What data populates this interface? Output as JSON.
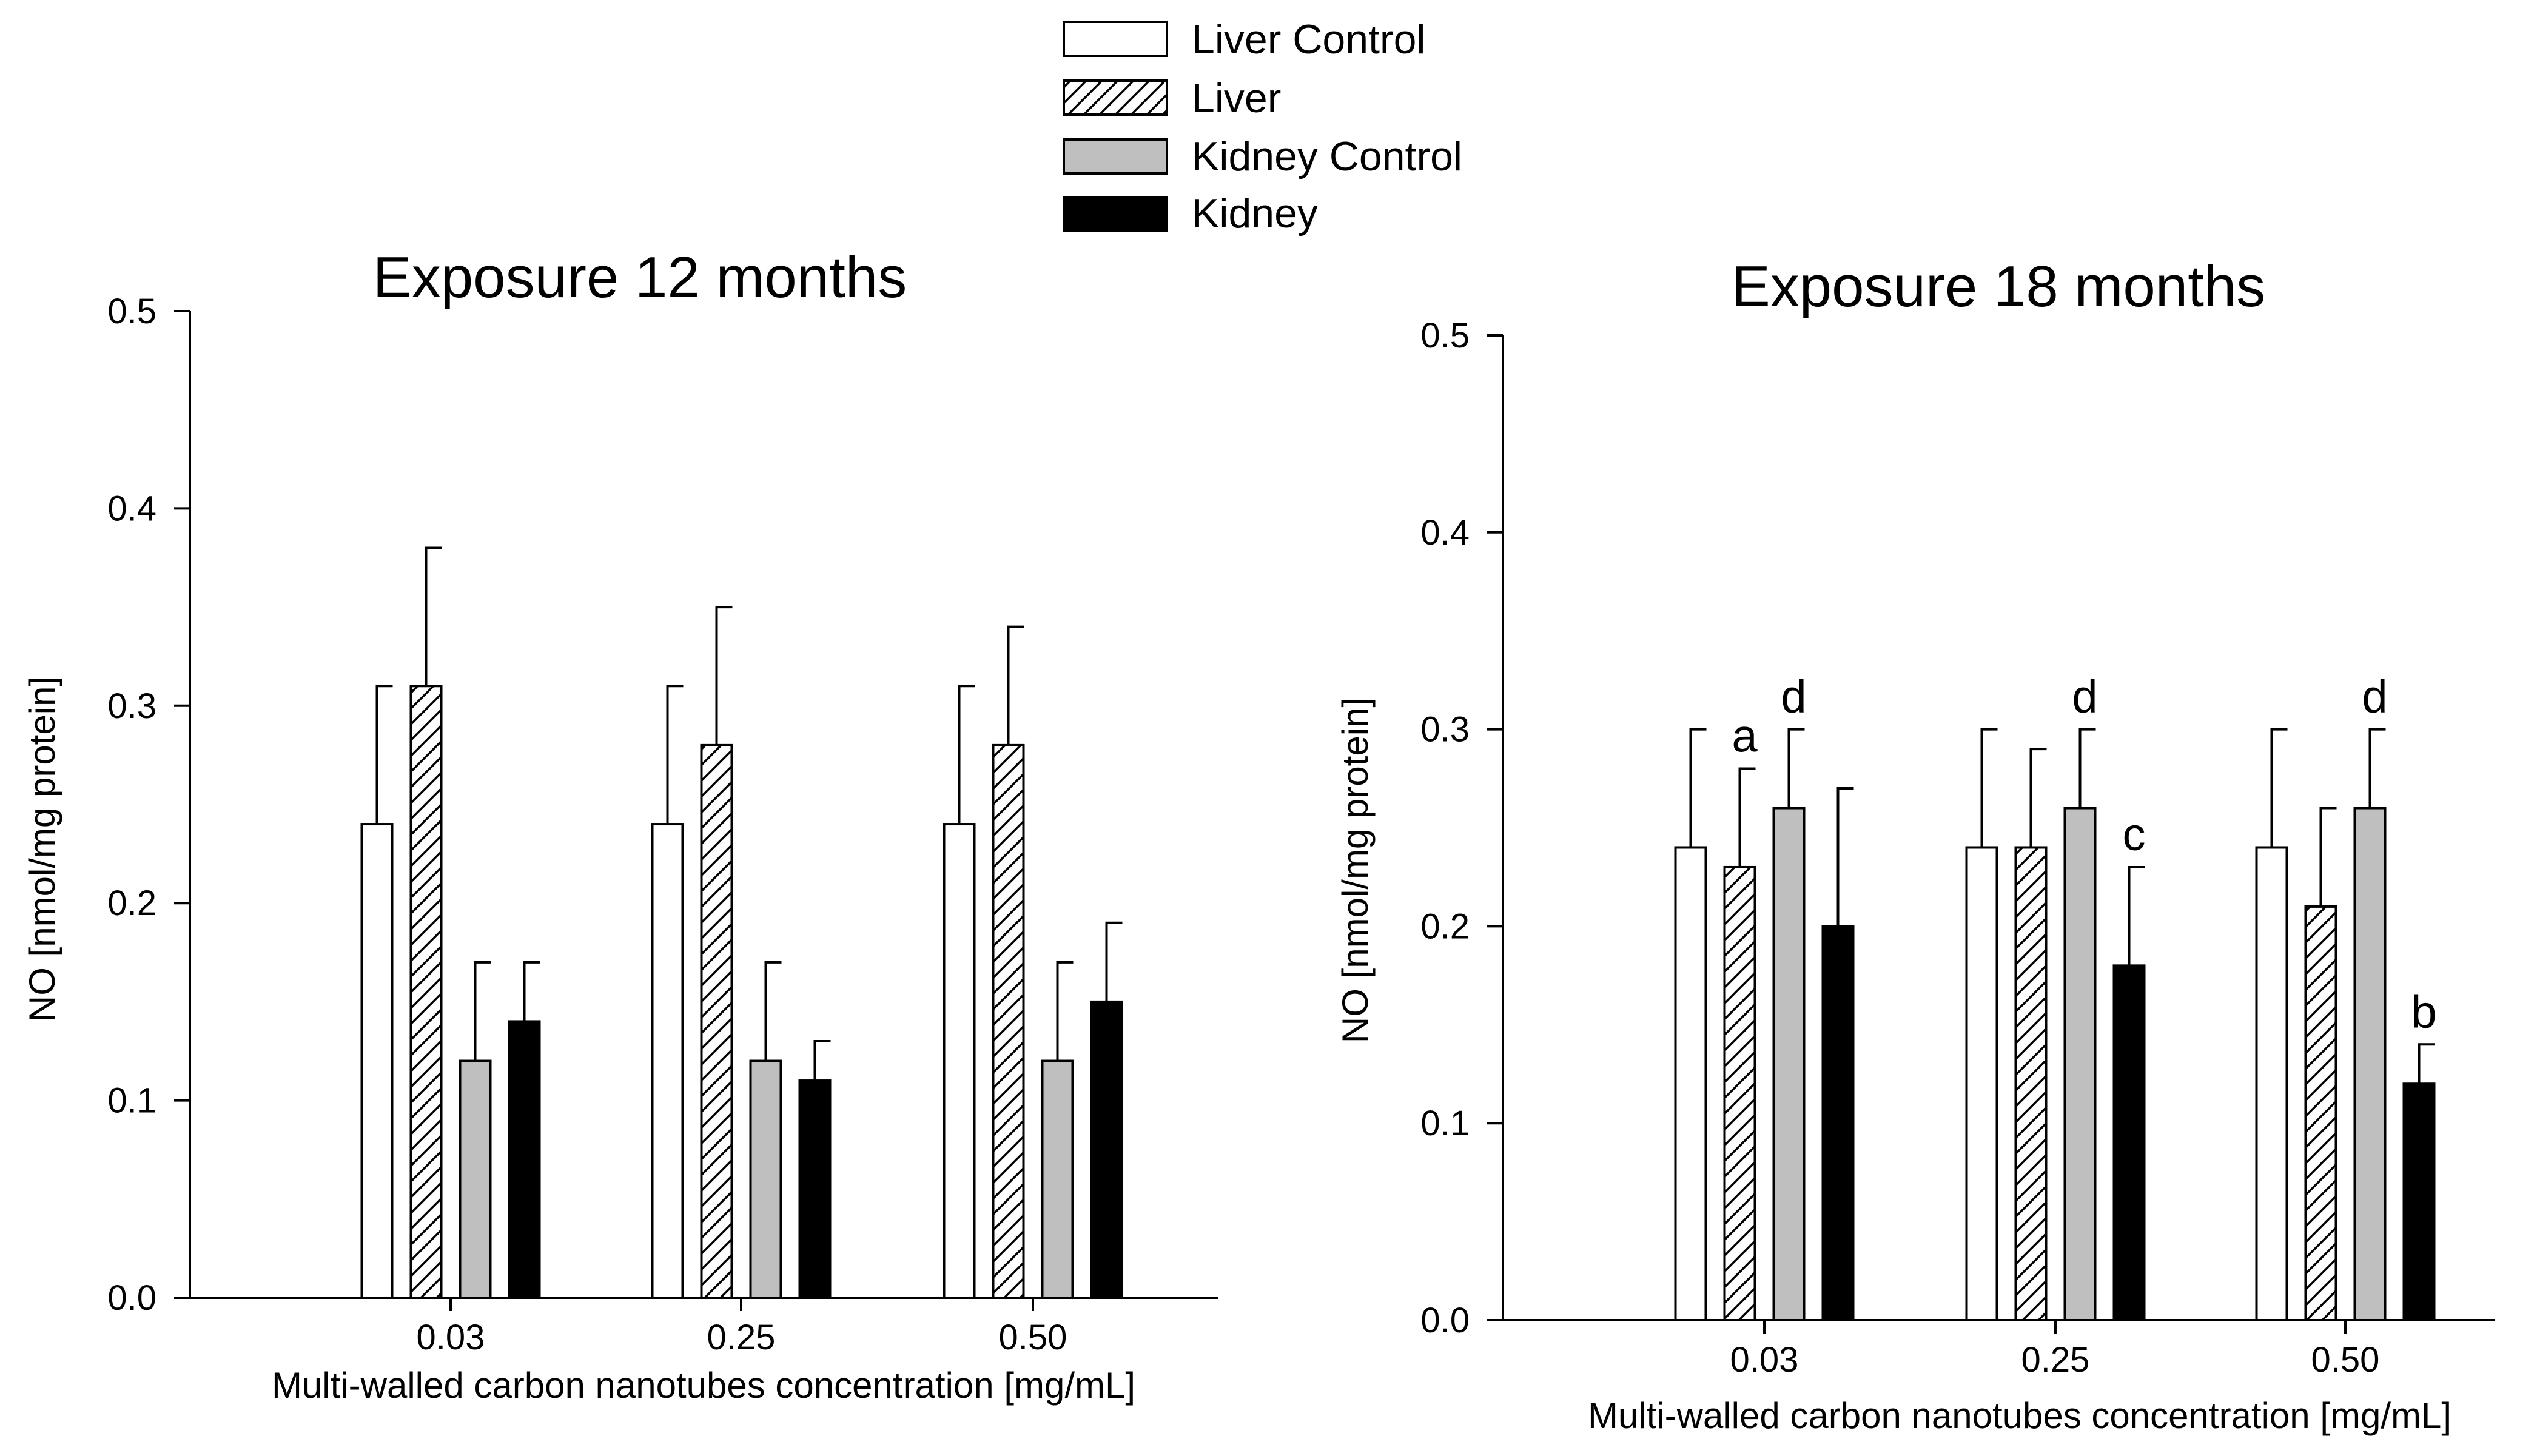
{
  "legend": [
    {
      "key": "liver_control",
      "label": "Liver Control",
      "fill": "#ffffff",
      "pattern": "none"
    },
    {
      "key": "liver",
      "label": "Liver",
      "fill": "#ffffff",
      "pattern": "hatch"
    },
    {
      "key": "kidney_control",
      "label": "Kidney Control",
      "fill": "#bfbfbf",
      "pattern": "none"
    },
    {
      "key": "kidney",
      "label": "Kidney",
      "fill": "#000000",
      "pattern": "none"
    }
  ],
  "chart_data": [
    {
      "type": "bar",
      "title": "Exposure 12 months",
      "xlabel": "Multi-walled carbon nanotubes concentration [mg/mL]",
      "ylabel": "NO [nmol/mg protein]",
      "ylim": [
        0,
        0.5
      ],
      "yticks": [
        "0.0",
        "0.1",
        "0.2",
        "0.3",
        "0.4",
        "0.5"
      ],
      "categories": [
        "0.03",
        "0.25",
        "0.50"
      ],
      "series": [
        {
          "name": "Liver Control",
          "values": [
            0.24,
            0.24,
            0.24
          ],
          "errors": [
            0.07,
            0.07,
            0.07
          ]
        },
        {
          "name": "Liver",
          "values": [
            0.31,
            0.28,
            0.28
          ],
          "errors": [
            0.07,
            0.07,
            0.06
          ]
        },
        {
          "name": "Kidney Control",
          "values": [
            0.12,
            0.12,
            0.12
          ],
          "errors": [
            0.05,
            0.05,
            0.05
          ]
        },
        {
          "name": "Kidney",
          "values": [
            0.14,
            0.11,
            0.15
          ],
          "errors": [
            0.03,
            0.02,
            0.04
          ]
        }
      ],
      "annotations": []
    },
    {
      "type": "bar",
      "title": "Exposure 18 months",
      "xlabel": "Multi-walled carbon nanotubes concentration [mg/mL]",
      "ylabel": "NO [nmol/mg protein]",
      "ylim": [
        0,
        0.5
      ],
      "yticks": [
        "0.0",
        "0.1",
        "0.2",
        "0.3",
        "0.4",
        "0.5"
      ],
      "categories": [
        "0.03",
        "0.25",
        "0.50"
      ],
      "series": [
        {
          "name": "Liver Control",
          "values": [
            0.24,
            0.24,
            0.24
          ],
          "errors": [
            0.06,
            0.06,
            0.06
          ]
        },
        {
          "name": "Liver",
          "values": [
            0.23,
            0.24,
            0.21
          ],
          "errors": [
            0.05,
            0.05,
            0.05
          ]
        },
        {
          "name": "Kidney Control",
          "values": [
            0.26,
            0.26,
            0.26
          ],
          "errors": [
            0.04,
            0.04,
            0.04
          ]
        },
        {
          "name": "Kidney",
          "values": [
            0.2,
            0.18,
            0.12
          ],
          "errors": [
            0.07,
            0.05,
            0.02
          ]
        }
      ],
      "annotations": [
        {
          "category": 0,
          "series": 1,
          "text": "a"
        },
        {
          "category": 0,
          "series": 2,
          "text": "d"
        },
        {
          "category": 1,
          "series": 2,
          "text": "d"
        },
        {
          "category": 1,
          "series": 3,
          "text": "c"
        },
        {
          "category": 2,
          "series": 2,
          "text": "d"
        },
        {
          "category": 2,
          "series": 3,
          "text": "b"
        }
      ]
    }
  ]
}
